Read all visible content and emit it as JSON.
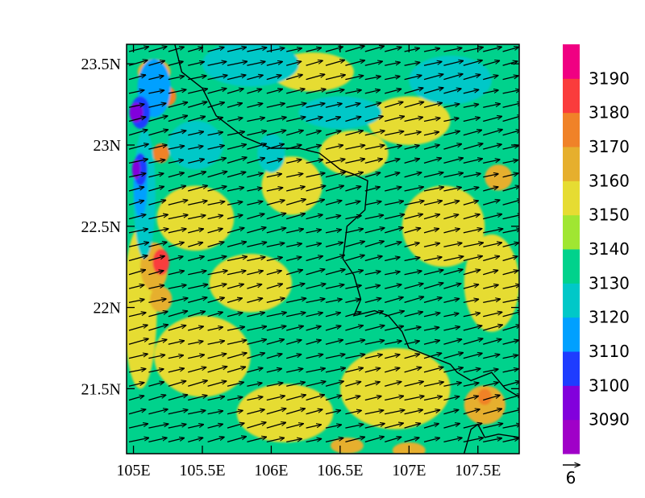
{
  "chart_data": {
    "type": "heatmap",
    "title": "",
    "xlabel": "",
    "ylabel": "",
    "xlim": [
      104.95,
      107.8
    ],
    "ylim": [
      21.1,
      23.62
    ],
    "x_ticks": [
      {
        "value": 105.0,
        "label": "105E"
      },
      {
        "value": 105.5,
        "label": "105.5E"
      },
      {
        "value": 106.0,
        "label": "106E"
      },
      {
        "value": 106.5,
        "label": "106.5E"
      },
      {
        "value": 107.0,
        "label": "107E"
      },
      {
        "value": 107.5,
        "label": "107.5E"
      }
    ],
    "y_ticks": [
      {
        "value": 21.5,
        "label": "21.5N"
      },
      {
        "value": 22.0,
        "label": "22N"
      },
      {
        "value": 22.5,
        "label": "22.5N"
      },
      {
        "value": 23.0,
        "label": "23N"
      },
      {
        "value": 23.5,
        "label": "23.5N"
      }
    ],
    "field_range": [
      3080,
      3200
    ],
    "dominant_level": 3140,
    "colorbar": {
      "levels": [
        3090,
        3100,
        3110,
        3120,
        3130,
        3140,
        3150,
        3160,
        3170,
        3180,
        3190
      ],
      "colors": [
        "#a000c8",
        "#8200dc",
        "#1e3cff",
        "#00a0ff",
        "#00c8c8",
        "#00d28c",
        "#a0e632",
        "#e6dc32",
        "#e6af2d",
        "#f08228",
        "#fa3c3c",
        "#f00082"
      ]
    },
    "wind_vectors": {
      "dominant_direction": "east-northeast",
      "reference_vector_label": "6"
    },
    "blobs": [
      {
        "lon": 105.45,
        "lat": 22.55,
        "value": 3150,
        "rx": 0.28,
        "ry": 0.2
      },
      {
        "lon": 105.85,
        "lat": 22.15,
        "value": 3150,
        "rx": 0.3,
        "ry": 0.18
      },
      {
        "lon": 106.15,
        "lat": 22.75,
        "value": 3150,
        "rx": 0.22,
        "ry": 0.18
      },
      {
        "lon": 106.6,
        "lat": 22.95,
        "value": 3150,
        "rx": 0.25,
        "ry": 0.14
      },
      {
        "lon": 107.25,
        "lat": 22.5,
        "value": 3150,
        "rx": 0.3,
        "ry": 0.25
      },
      {
        "lon": 105.5,
        "lat": 21.7,
        "value": 3150,
        "rx": 0.35,
        "ry": 0.25
      },
      {
        "lon": 106.1,
        "lat": 21.35,
        "value": 3150,
        "rx": 0.35,
        "ry": 0.18
      },
      {
        "lon": 106.9,
        "lat": 21.5,
        "value": 3150,
        "rx": 0.4,
        "ry": 0.25
      },
      {
        "lon": 107.0,
        "lat": 23.15,
        "value": 3150,
        "rx": 0.3,
        "ry": 0.15
      },
      {
        "lon": 105.05,
        "lat": 22.0,
        "value": 3150,
        "rx": 0.12,
        "ry": 0.5
      },
      {
        "lon": 107.6,
        "lat": 22.15,
        "value": 3150,
        "rx": 0.2,
        "ry": 0.3
      },
      {
        "lon": 106.3,
        "lat": 23.45,
        "value": 3150,
        "rx": 0.3,
        "ry": 0.12
      },
      {
        "lon": 105.15,
        "lat": 22.25,
        "value": 3160,
        "rx": 0.1,
        "ry": 0.15
      },
      {
        "lon": 105.15,
        "lat": 23.45,
        "value": 3160,
        "rx": 0.12,
        "ry": 0.08
      },
      {
        "lon": 107.55,
        "lat": 21.4,
        "value": 3160,
        "rx": 0.15,
        "ry": 0.12
      },
      {
        "lon": 107.65,
        "lat": 22.8,
        "value": 3160,
        "rx": 0.1,
        "ry": 0.08
      },
      {
        "lon": 107.0,
        "lat": 21.12,
        "value": 3160,
        "rx": 0.12,
        "ry": 0.05
      },
      {
        "lon": 106.55,
        "lat": 21.15,
        "value": 3160,
        "rx": 0.12,
        "ry": 0.05
      },
      {
        "lon": 105.2,
        "lat": 22.05,
        "value": 3160,
        "rx": 0.08,
        "ry": 0.08
      },
      {
        "lon": 105.2,
        "lat": 22.28,
        "value": 3180,
        "rx": 0.06,
        "ry": 0.08
      },
      {
        "lon": 105.2,
        "lat": 22.95,
        "value": 3170,
        "rx": 0.06,
        "ry": 0.06
      },
      {
        "lon": 107.55,
        "lat": 21.45,
        "value": 3170,
        "rx": 0.05,
        "ry": 0.05
      },
      {
        "lon": 105.25,
        "lat": 23.3,
        "value": 3170,
        "rx": 0.06,
        "ry": 0.06
      },
      {
        "lon": 105.45,
        "lat": 23.0,
        "value": 3120,
        "rx": 0.2,
        "ry": 0.15
      },
      {
        "lon": 105.85,
        "lat": 23.5,
        "value": 3120,
        "rx": 0.35,
        "ry": 0.14
      },
      {
        "lon": 106.5,
        "lat": 23.2,
        "value": 3120,
        "rx": 0.3,
        "ry": 0.1
      },
      {
        "lon": 107.3,
        "lat": 23.4,
        "value": 3120,
        "rx": 0.3,
        "ry": 0.15
      },
      {
        "lon": 105.08,
        "lat": 22.7,
        "value": 3120,
        "rx": 0.08,
        "ry": 0.4
      },
      {
        "lon": 106.0,
        "lat": 22.95,
        "value": 3120,
        "rx": 0.1,
        "ry": 0.12
      },
      {
        "lon": 105.15,
        "lat": 23.35,
        "value": 3110,
        "rx": 0.12,
        "ry": 0.18
      },
      {
        "lon": 105.05,
        "lat": 22.75,
        "value": 3110,
        "rx": 0.05,
        "ry": 0.2
      },
      {
        "lon": 105.05,
        "lat": 23.2,
        "value": 3100,
        "rx": 0.07,
        "ry": 0.1
      },
      {
        "lon": 105.05,
        "lat": 22.85,
        "value": 3100,
        "rx": 0.05,
        "ry": 0.1
      },
      {
        "lon": 105.02,
        "lat": 23.2,
        "value": 3090,
        "rx": 0.05,
        "ry": 0.06
      },
      {
        "lon": 105.02,
        "lat": 22.85,
        "value": 3090,
        "rx": 0.03,
        "ry": 0.06
      }
    ],
    "borders": [
      [
        [
          105.3,
          23.62
        ],
        [
          105.35,
          23.45
        ],
        [
          105.5,
          23.35
        ],
        [
          105.6,
          23.18
        ],
        [
          105.8,
          23.05
        ],
        [
          106.0,
          22.98
        ],
        [
          106.2,
          22.98
        ],
        [
          106.35,
          22.95
        ],
        [
          106.5,
          22.85
        ],
        [
          106.6,
          22.82
        ],
        [
          106.7,
          22.78
        ],
        [
          106.68,
          22.6
        ],
        [
          106.55,
          22.5
        ],
        [
          106.52,
          22.3
        ],
        [
          106.6,
          22.2
        ],
        [
          106.65,
          22.05
        ],
        [
          106.6,
          21.95
        ],
        [
          106.75,
          21.98
        ],
        [
          106.85,
          21.95
        ],
        [
          106.95,
          21.85
        ],
        [
          107.0,
          21.75
        ],
        [
          107.15,
          21.7
        ],
        [
          107.3,
          21.65
        ],
        [
          107.35,
          21.6
        ],
        [
          107.45,
          21.55
        ],
        [
          107.6,
          21.6
        ],
        [
          107.7,
          21.5
        ],
        [
          107.8,
          21.45
        ]
      ],
      [
        [
          107.4,
          21.1
        ],
        [
          107.45,
          21.25
        ],
        [
          107.5,
          21.28
        ],
        [
          107.55,
          21.2
        ],
        [
          107.65,
          21.22
        ],
        [
          107.8,
          21.2
        ]
      ]
    ]
  }
}
